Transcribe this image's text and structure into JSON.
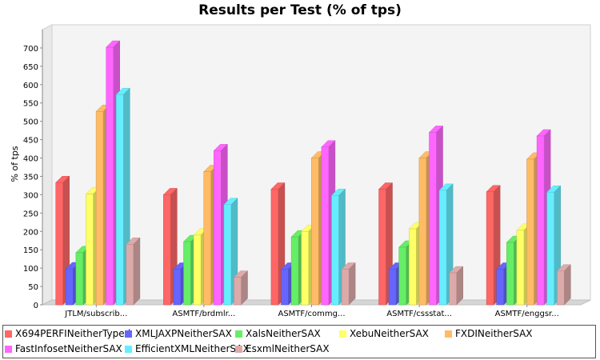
{
  "chart_data": {
    "type": "bar",
    "title": "Results per Test (% of tps)",
    "xlabel": "",
    "ylabel": "% of tps",
    "ylim": [
      0,
      750
    ],
    "yticks": [
      0,
      50,
      100,
      150,
      200,
      250,
      300,
      350,
      400,
      450,
      500,
      550,
      600,
      650,
      700
    ],
    "categories": [
      "JTLM/subscrib...",
      "ASMTF/brdmlr...",
      "ASMTF/commg...",
      "ASMTF/cssstat...",
      "ASMTF/enggsr..."
    ],
    "series": [
      {
        "name": "X694PERFINeitherTyped",
        "color": "#ff6666",
        "values": [
          333,
          300,
          315,
          315,
          308
        ]
      },
      {
        "name": "XMLJAXPNeitherSAX",
        "color": "#6666ff",
        "values": [
          98,
          97,
          97,
          97,
          97
        ]
      },
      {
        "name": "XalsNeitherSAX",
        "color": "#66ee66",
        "values": [
          142,
          172,
          185,
          157,
          170
        ]
      },
      {
        "name": "XebuNeitherSAX",
        "color": "#ffff66",
        "values": [
          302,
          190,
          200,
          207,
          203
        ]
      },
      {
        "name": "FXDINeitherSAX",
        "color": "#ffbb66",
        "values": [
          527,
          363,
          400,
          400,
          397
        ]
      },
      {
        "name": "FastInfosetNeitherSAX",
        "color": "#ff66ff",
        "values": [
          702,
          420,
          430,
          470,
          460
        ]
      },
      {
        "name": "EfficientXMLNeitherSAX",
        "color": "#66eeff",
        "values": [
          573,
          273,
          298,
          312,
          307
        ]
      },
      {
        "name": "EsxmlNeitherSAX",
        "color": "#ddaaaa",
        "values": [
          165,
          75,
          97,
          87,
          92
        ]
      }
    ],
    "grid": false,
    "legend_position": "bottom"
  }
}
